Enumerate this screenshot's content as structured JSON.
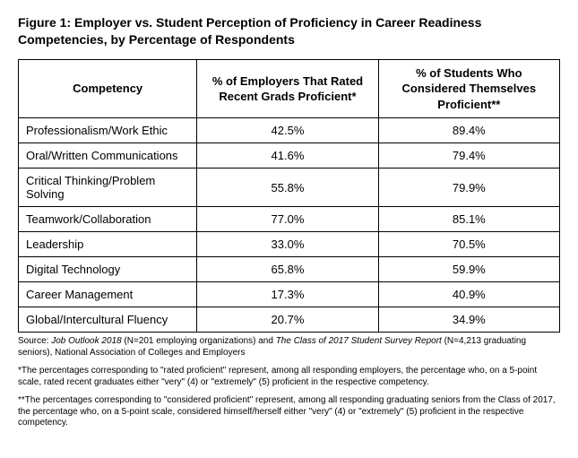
{
  "title": "Figure 1: Employer vs. Student Perception of Proficiency in Career Readiness Competencies, by Percentage of Respondents",
  "table": {
    "columns": [
      "Competency",
      "% of Employers That Rated Recent Grads Proficient*",
      "% of Students Who Considered Themselves Proficient**"
    ],
    "rows": [
      {
        "competency": "Professionalism/Work Ethic",
        "employers": "42.5%",
        "students": "89.4%"
      },
      {
        "competency": "Oral/Written Communications",
        "employers": "41.6%",
        "students": "79.4%"
      },
      {
        "competency": "Critical Thinking/Problem Solving",
        "employers": "55.8%",
        "students": "79.9%"
      },
      {
        "competency": "Teamwork/Collaboration",
        "employers": "77.0%",
        "students": "85.1%"
      },
      {
        "competency": "Leadership",
        "employers": "33.0%",
        "students": "70.5%"
      },
      {
        "competency": "Digital Technology",
        "employers": "65.8%",
        "students": "59.9%"
      },
      {
        "competency": "Career Management",
        "employers": "17.3%",
        "students": "40.9%"
      },
      {
        "competency": "Global/Intercultural Fluency",
        "employers": "20.7%",
        "students": "34.9%"
      }
    ]
  },
  "footnotes": {
    "source_prefix": "Source: ",
    "source_ital1": "Job Outlook 2018 ",
    "source_mid1": "(N=201 employing organizations) and ",
    "source_ital2": "The Class of 2017 Student Survey Report ",
    "source_mid2": "(N=4,213 graduating seniors), National Association of Colleges and Employers",
    "note1": "*The percentages corresponding to \"rated proficient\" represent, among all responding employers, the percentage who, on a 5-point scale, rated recent graduates either \"very\" (4) or \"extremely\" (5) proficient in the respective competency.",
    "note2": "**The percentages corresponding to \"considered proficient\" represent, among all responding graduating seniors from the Class of 2017, the percentage who, on a 5-point scale, considered himself/herself either \"very\" (4) or \"extremely\" (5) proficient in the respective competency."
  }
}
